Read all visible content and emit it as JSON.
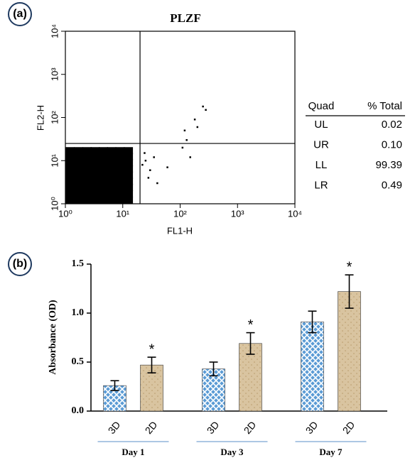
{
  "chart_data": [
    {
      "type": "scatter",
      "panel_label": "(a)",
      "title": "PLZF",
      "xlabel": "FL1-H",
      "ylabel": "FL2-H",
      "log_scale": true,
      "color": "#000000",
      "xlim": [
        1,
        10000
      ],
      "ylim": [
        1,
        10000
      ],
      "xticks": [
        {
          "value": 1,
          "label": "10⁰"
        },
        {
          "value": 10,
          "label": "10¹"
        },
        {
          "value": 100,
          "label": "10²"
        },
        {
          "value": 1000,
          "label": "10³"
        },
        {
          "value": 10000,
          "label": "10⁴"
        }
      ],
      "yticks": [
        {
          "value": 1,
          "label": "10⁰"
        },
        {
          "value": 10,
          "label": "10¹"
        },
        {
          "value": 100,
          "label": "10²"
        },
        {
          "value": 1000,
          "label": "10³"
        },
        {
          "value": 10000,
          "label": "10⁴"
        }
      ],
      "quadrant": [
        20,
        25
      ],
      "x": [
        1.2,
        1.7,
        2.4,
        3.3,
        4.6,
        6.4,
        9,
        12.5,
        1.2,
        1.7,
        2.4,
        3.3,
        4.6,
        6.4,
        9,
        12.5,
        1.2,
        1.7,
        2.4,
        3.3,
        4.6,
        6.4,
        9,
        12.5,
        1.2,
        1.7,
        2.4,
        3.3,
        4.6,
        6.4,
        9,
        12.5,
        1.2,
        1.7,
        2.4,
        3.3,
        4.6,
        6.4,
        9,
        12.5,
        1.2,
        1.7,
        2.4,
        3.3,
        4.6,
        6.4,
        9,
        12.5,
        1.2,
        1.7,
        2.4,
        3.3,
        4.6,
        6.4,
        9,
        12.5,
        1.2,
        1.7,
        2.4,
        3.3,
        4.6,
        6.4,
        9,
        12.5,
        1.2,
        1.7,
        2.4,
        3.3,
        4.6,
        6.4,
        9,
        12.5,
        22,
        25,
        30,
        40,
        28,
        35,
        60,
        24,
        150,
        120,
        200,
        250,
        280,
        180,
        130,
        110
      ],
      "y": [
        1.2,
        1.2,
        1.2,
        1.2,
        1.2,
        1.2,
        1.2,
        1.2,
        1.7,
        1.7,
        1.7,
        1.7,
        1.7,
        1.7,
        1.7,
        1.7,
        2.4,
        2.4,
        2.4,
        2.4,
        2.4,
        2.4,
        2.4,
        2.4,
        3.3,
        3.3,
        3.3,
        3.3,
        3.3,
        3.3,
        3.3,
        3.3,
        4.6,
        4.6,
        4.6,
        4.6,
        4.6,
        4.6,
        4.6,
        4.6,
        6.4,
        6.4,
        6.4,
        6.4,
        6.4,
        6.4,
        6.4,
        6.4,
        9,
        9,
        9,
        9,
        9,
        9,
        9,
        9,
        12.5,
        12.5,
        12.5,
        12.5,
        12.5,
        12.5,
        12.5,
        12.5,
        17,
        17,
        17,
        17,
        17,
        17,
        17,
        17,
        8,
        10,
        6,
        3,
        4,
        12,
        7,
        15,
        12,
        50,
        60,
        180,
        150,
        90,
        30,
        20
      ],
      "table": {
        "header": [
          "Quad",
          "% Total"
        ],
        "rows": [
          [
            "UL",
            "0.02"
          ],
          [
            "UR",
            "0.10"
          ],
          [
            "LL",
            "99.39"
          ],
          [
            "LR",
            "0.49"
          ]
        ]
      }
    },
    {
      "type": "bar",
      "panel_label": "(b)",
      "ylabel": "Absorbance (OD)",
      "categories": [
        "Day 1",
        "Day 3",
        "Day 7"
      ],
      "series": [
        {
          "name": "3D",
          "color": "#5b9bd5",
          "pattern": "crosshatch",
          "values": [
            0.26,
            0.43,
            0.91
          ],
          "errors": [
            0.05,
            0.07,
            0.11
          ]
        },
        {
          "name": "2D",
          "color": "#d9c4a0",
          "pattern": "dots",
          "values": [
            0.47,
            0.69,
            1.22
          ],
          "errors": [
            0.08,
            0.11,
            0.17
          ],
          "annotations": [
            "*",
            "*",
            "*"
          ]
        }
      ],
      "ylim": [
        0,
        1.5
      ],
      "yticks": [
        {
          "value": 0,
          "label": "0.0"
        },
        {
          "value": 0.5,
          "label": "0.5"
        },
        {
          "value": 1,
          "label": "1.0"
        },
        1.5
      ]
    }
  ]
}
